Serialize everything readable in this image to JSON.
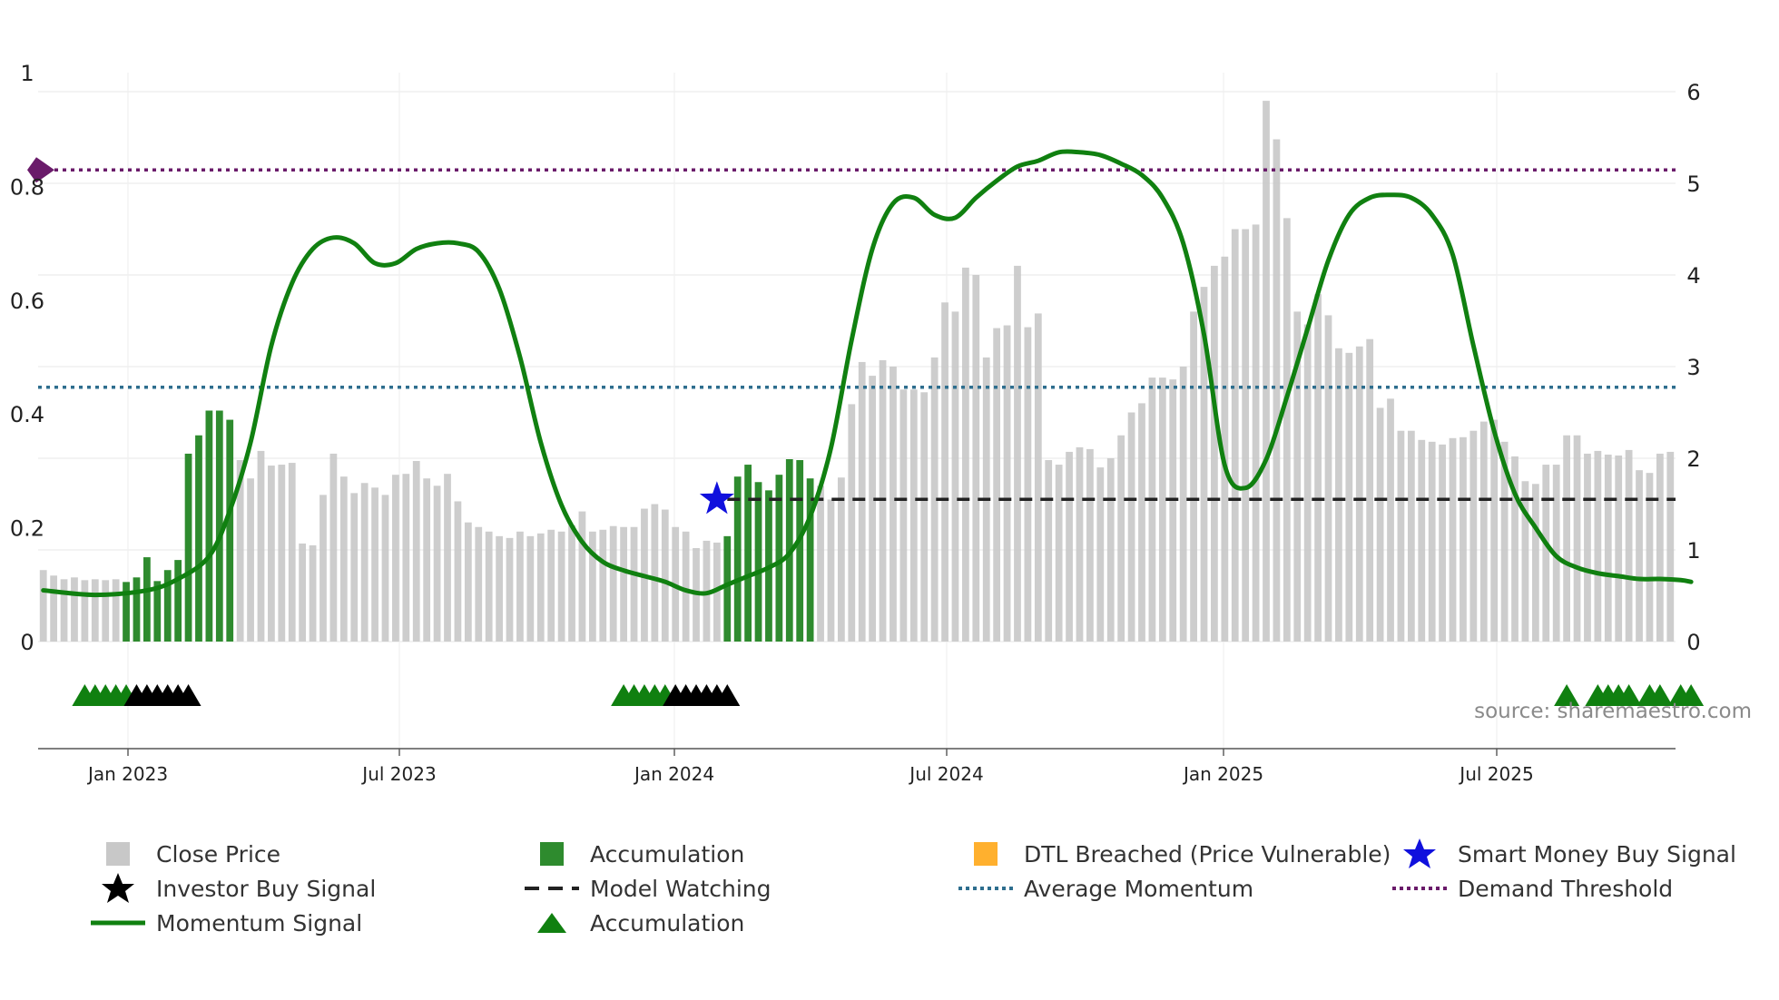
{
  "chart_data": {
    "type": "bar",
    "title": "",
    "source_label": "source: sharemaestro.com",
    "x_ticks": [
      "Jan 2023",
      "Jul 2023",
      "Jan 2024",
      "Jul 2024",
      "Jan 2025",
      "Jul 2025"
    ],
    "left_axis": {
      "ticks": [
        "0",
        "0.2",
        "0.4",
        "0.6",
        "0.8",
        "1"
      ],
      "range": [
        0,
        1
      ]
    },
    "right_axis": {
      "ticks": [
        "0",
        "1",
        "2",
        "3",
        "4",
        "5",
        "6"
      ],
      "range": [
        0,
        6
      ]
    },
    "series": [
      {
        "name": "Close Price",
        "axis": "right",
        "type": "bar",
        "note": "weekly bars; category per bar: g=grey (close price), a=green (accumulation), o=orange (DTL breached)",
        "values": [
          0.78,
          0.72,
          0.68,
          0.7,
          0.67,
          0.68,
          0.67,
          0.68,
          0.65,
          0.7,
          0.92,
          0.66,
          0.78,
          0.89,
          2.05,
          2.25,
          2.52,
          2.52,
          2.42,
          1.98,
          1.78,
          2.08,
          1.92,
          1.93,
          1.95,
          1.07,
          1.05,
          1.6,
          2.05,
          1.8,
          1.62,
          1.73,
          1.68,
          1.6,
          1.82,
          1.83,
          1.97,
          1.78,
          1.7,
          1.83,
          1.53,
          1.3,
          1.25,
          1.2,
          1.15,
          1.13,
          1.2,
          1.15,
          1.18,
          1.22,
          1.2,
          1.27,
          1.42,
          1.2,
          1.22,
          1.26,
          1.25,
          1.25,
          1.45,
          1.5,
          1.44,
          1.25,
          1.2,
          1.02,
          1.1,
          1.08,
          1.15,
          1.8,
          1.93,
          1.74,
          1.65,
          1.82,
          1.99,
          1.98,
          1.78,
          1.7,
          1.55,
          1.79,
          2.59,
          3.05,
          2.9,
          3.07,
          3.0,
          2.75,
          2.75,
          2.72,
          3.1,
          3.7,
          3.6,
          4.08,
          4.0,
          3.1,
          3.42,
          3.45,
          4.1,
          3.43,
          3.58,
          1.98,
          1.93,
          2.07,
          2.12,
          2.1,
          1.9,
          2.0,
          2.25,
          2.5,
          2.6,
          2.88,
          2.88,
          2.86,
          3.0,
          3.6,
          3.87,
          4.1,
          4.2,
          4.5,
          4.5,
          4.55,
          5.9,
          5.48,
          4.62,
          3.6,
          3.46,
          3.79,
          3.56,
          3.2,
          3.15,
          3.22,
          3.3,
          2.55,
          2.65,
          2.3,
          2.3,
          2.2,
          2.18,
          2.15,
          2.22,
          2.23,
          2.3,
          2.4,
          2.42,
          2.18,
          2.02,
          1.75,
          1.72,
          1.93,
          1.93,
          2.25,
          2.25,
          2.05,
          2.08,
          2.04,
          2.03,
          2.09,
          1.87,
          1.84,
          2.05,
          2.07
        ],
        "categories": "ggggggggaaaaaaaaaaagggggggggggggggggggggggggggggggggggggggggggggggaaaaaaaaagggggggggggggggggggggggggggggggggggggggggggggggggggggggggggggggggggggggggggggggggggggggggggggggggggggggggggggggggggggggggggggggggg"
      },
      {
        "name": "Momentum Signal",
        "axis": "left",
        "type": "line",
        "x": [
          0,
          5,
          10,
          13,
          16,
          18,
          20,
          22,
          24,
          26,
          28,
          30,
          32,
          34,
          36,
          38,
          40,
          42,
          44,
          46,
          48,
          50,
          52,
          54,
          56,
          58,
          60,
          62,
          64,
          66,
          68,
          70,
          72,
          74,
          76,
          78,
          80,
          82,
          84,
          86,
          88,
          90,
          92,
          94,
          96,
          98,
          100,
          102,
          104,
          106,
          108,
          110,
          112,
          114,
          116,
          118,
          120,
          122,
          124,
          126,
          128,
          130,
          132,
          134,
          136,
          138,
          140,
          142,
          144,
          146,
          148,
          150,
          152,
          154,
          156,
          158,
          159
        ],
        "values": [
          0.09,
          0.082,
          0.09,
          0.11,
          0.15,
          0.23,
          0.35,
          0.52,
          0.63,
          0.69,
          0.71,
          0.7,
          0.665,
          0.665,
          0.69,
          0.7,
          0.7,
          0.685,
          0.62,
          0.5,
          0.35,
          0.24,
          0.175,
          0.14,
          0.125,
          0.115,
          0.105,
          0.09,
          0.085,
          0.1,
          0.115,
          0.13,
          0.155,
          0.22,
          0.34,
          0.53,
          0.69,
          0.77,
          0.78,
          0.75,
          0.745,
          0.78,
          0.81,
          0.835,
          0.845,
          0.86,
          0.86,
          0.855,
          0.84,
          0.82,
          0.78,
          0.7,
          0.54,
          0.31,
          0.27,
          0.32,
          0.43,
          0.55,
          0.67,
          0.75,
          0.78,
          0.785,
          0.78,
          0.75,
          0.68,
          0.52,
          0.37,
          0.26,
          0.2,
          0.15,
          0.13,
          0.12,
          0.115,
          0.11,
          0.11,
          0.108,
          0.105
        ]
      }
    ],
    "reference_lines": [
      {
        "name": "Average Momentum",
        "axis": "left",
        "value": 0.447,
        "color": "#2e6e8e",
        "style": "dotted"
      },
      {
        "name": "Demand Threshold",
        "axis": "left",
        "value": 0.829,
        "color": "#6a1b6a",
        "style": "dotted"
      }
    ],
    "model_watching": {
      "name": "Model Watching",
      "axis": "left",
      "value": 0.25,
      "from_bar": 66,
      "to_bar": 160
    },
    "smart_money_buy_signal": {
      "name": "Smart Money Buy Signal",
      "bar": 65,
      "value": 0.25
    },
    "signal_markers": {
      "accumulation_triangles": [
        4,
        5,
        6,
        7,
        8,
        56,
        57,
        58,
        59,
        60,
        147,
        150,
        151,
        152,
        153,
        155,
        156,
        158,
        159
      ],
      "investor_buy_stars": [
        9,
        10,
        11,
        12,
        13,
        14,
        61,
        62,
        63,
        64,
        65,
        66
      ]
    },
    "legend": [
      {
        "label": "Close Price",
        "kind": "grey-square"
      },
      {
        "label": "Investor Buy Signal",
        "kind": "black-star"
      },
      {
        "label": "Momentum Signal",
        "kind": "green-line"
      },
      {
        "label": "Accumulation",
        "kind": "green-square"
      },
      {
        "label": "Model Watching",
        "kind": "black-dash"
      },
      {
        "label": "Accumulation",
        "kind": "green-triangle"
      },
      {
        "label": "DTL Breached (Price Vulnerable)",
        "kind": "orange-square"
      },
      {
        "label": "Average Momentum",
        "kind": "blue-dotted"
      },
      {
        "label": "Smart Money Buy Signal",
        "kind": "blue-star"
      },
      {
        "label": "Demand Threshold",
        "kind": "purple-dotted"
      }
    ],
    "colors": {
      "close_price": "#c8c8c8",
      "accumulation": "#2e8b2e",
      "dtl_breached": "#ffcc80",
      "momentum": "#108010",
      "average_momentum": "#2e6e8e",
      "demand_threshold": "#6a1b6a",
      "model_watching": "#222222",
      "smart_money": "#1010dd",
      "investor_buy": "#000000"
    }
  }
}
